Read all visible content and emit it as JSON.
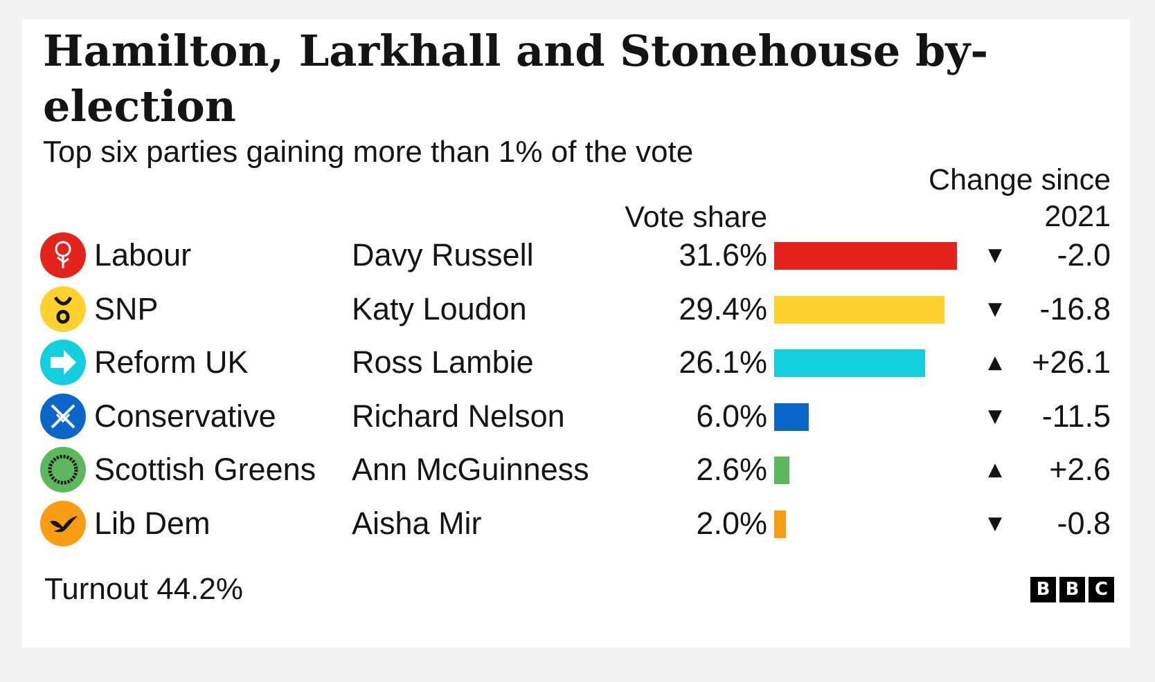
{
  "title": "Hamilton, Larkhall and Stonehouse by-election",
  "subtitle": "Top six parties gaining more than 1% of the vote",
  "columns": {
    "vote_share": "Vote share",
    "change": "Change since 2021"
  },
  "chart_data": {
    "type": "bar",
    "orientation": "horizontal",
    "title": "Hamilton, Larkhall and Stonehouse by-election",
    "subtitle": "Top six parties gaining more than 1% of the vote",
    "categories": [
      "Labour",
      "SNP",
      "Reform UK",
      "Conservative",
      "Scottish Greens",
      "Lib Dem"
    ],
    "candidates": [
      "Davy Russell",
      "Katy Loudon",
      "Ross Lambie",
      "Richard Nelson",
      "Ann McGuinness",
      "Aisha Mir"
    ],
    "values": [
      31.6,
      29.4,
      26.1,
      6.0,
      2.6,
      2.0
    ],
    "value_labels": [
      "31.6%",
      "29.4%",
      "26.1%",
      "6.0%",
      "2.6%",
      "2.0%"
    ],
    "change_since_2021": [
      -2.0,
      -16.8,
      26.1,
      -11.5,
      2.6,
      -0.8
    ],
    "change_labels": [
      "-2.0",
      "-16.8",
      "+26.1",
      "-11.5",
      "+2.6",
      "-0.8"
    ],
    "colors": [
      "#e4231d",
      "#fdd22c",
      "#12cfe0",
      "#0a66c9",
      "#5cb85c",
      "#fa9c12"
    ],
    "icons": [
      "labour-rose-icon",
      "snp-logo-icon",
      "reform-uk-arrow-icon",
      "conservative-tree-icon",
      "scottish-greens-logo-icon",
      "lib-dem-bird-icon"
    ],
    "xlim": [
      0,
      31.6
    ],
    "grid": false,
    "legend": "none"
  },
  "footer": {
    "turnout": "Turnout 44.2%",
    "source_logo": [
      "B",
      "B",
      "C"
    ]
  }
}
